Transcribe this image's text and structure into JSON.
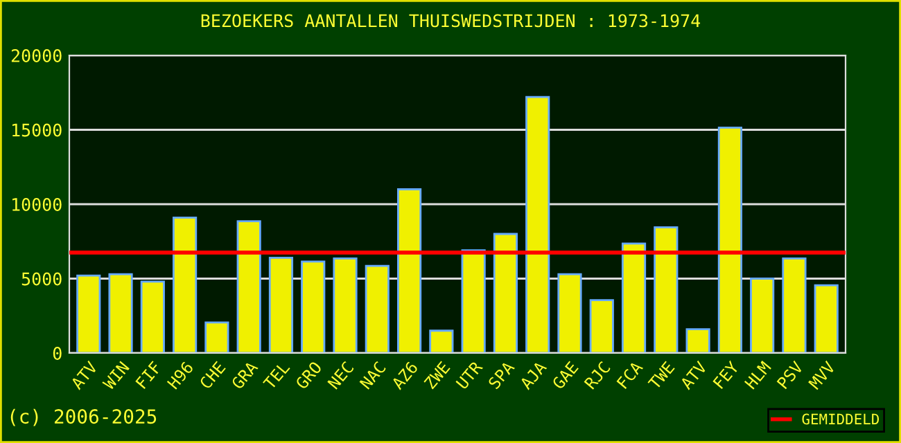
{
  "chart_data": {
    "type": "bar",
    "title": "BEZOEKERS AANTALLEN THUISWEDSTRIJDEN : 1973-1974",
    "categories": [
      "ATV",
      "WIN",
      "FIF",
      "H96",
      "CHE",
      "GRA",
      "TEL",
      "GRO",
      "NEC",
      "NAC",
      "AZ6",
      "ZWE",
      "UTR",
      "SPA",
      "AJA",
      "GAE",
      "RJC",
      "FCA",
      "TWE",
      "ATV",
      "FEY",
      "HLM",
      "PSV",
      "MVV"
    ],
    "values": [
      5200,
      5300,
      4800,
      9100,
      2050,
      8850,
      6400,
      6150,
      6350,
      5850,
      11000,
      1500,
      6900,
      8000,
      17200,
      5300,
      3550,
      7350,
      8450,
      1600,
      15150,
      5000,
      6350,
      4550
    ],
    "color": "#f0f000",
    "ylim": [
      0,
      20000
    ],
    "yticks": [
      0,
      5000,
      10000,
      15000,
      20000
    ],
    "grid": "y",
    "ref_lines": [
      {
        "axis": "y",
        "value": 6750,
        "label": "GEMIDDELD",
        "color": "#ff0000"
      }
    ],
    "legend": "bottom right",
    "annotations": [
      "(c) 2006-2025"
    ]
  }
}
